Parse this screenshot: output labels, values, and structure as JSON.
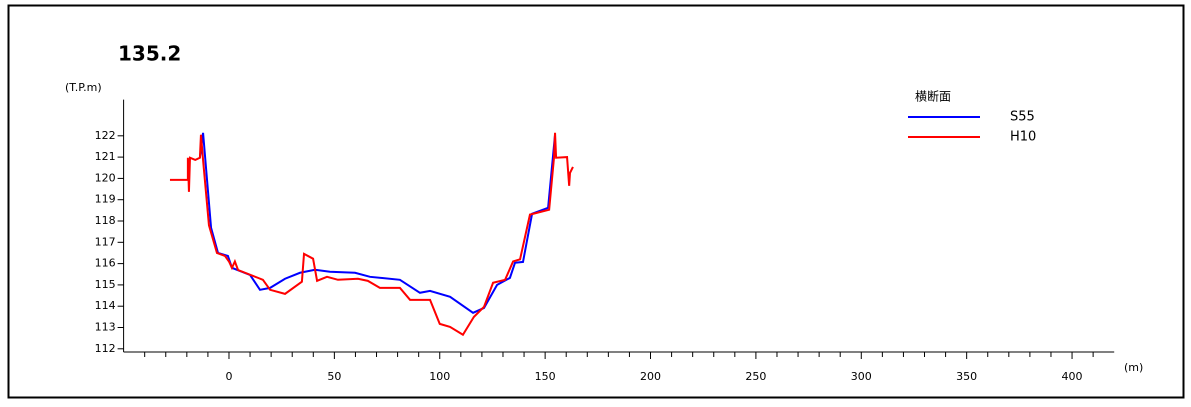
{
  "chart_data": {
    "type": "line",
    "title": "135.2",
    "y_unit": "(T.P.m)",
    "x_unit": "(m)",
    "legend_title": "横断面",
    "legend": "upper right",
    "xlim": [
      -50,
      420
    ],
    "ylim": [
      111.85,
      123.7
    ],
    "xticks": [
      0,
      50,
      100,
      150,
      200,
      250,
      300,
      350,
      400
    ],
    "xminorticks": [
      -40,
      -30,
      -20,
      -10,
      10,
      20,
      30,
      40,
      60,
      70,
      80,
      90,
      110,
      120,
      130,
      140,
      160,
      170,
      180,
      190,
      210,
      220,
      230,
      240,
      260,
      270,
      280,
      290,
      310,
      320,
      330,
      340,
      360,
      370,
      380,
      390,
      410
    ],
    "yticks": [
      112,
      113,
      114,
      115,
      116,
      117,
      118,
      119,
      120,
      121,
      122
    ],
    "series": [
      {
        "name": "S55",
        "color": "#0000ff",
        "x": [
          -13.8,
          -12.3,
          -8.5,
          -5.2,
          -0.5,
          1.4,
          10,
          14.7,
          19.5,
          26.6,
          33.7,
          40.8,
          47.9,
          59.8,
          66.9,
          81.1,
          90.6,
          95.4,
          104.9,
          115.8,
          121,
          127.2,
          133.3,
          135.7,
          139.5,
          143.8,
          151.4,
          154.7
        ],
        "values": [
          120.97,
          122.14,
          117.68,
          116.5,
          116.36,
          115.8,
          115.47,
          114.77,
          114.86,
          115.29,
          115.57,
          115.71,
          115.62,
          115.57,
          115.38,
          115.24,
          114.63,
          114.72,
          114.44,
          113.69,
          113.92,
          115.0,
          115.33,
          116.04,
          116.08,
          118.34,
          118.62,
          122.05
        ]
      },
      {
        "name": "H10",
        "color": "#ff0000",
        "x": [
          -28,
          -19.5,
          -19.5,
          -19,
          -18.5,
          -16,
          -13.8,
          -13.3,
          -12.3,
          -9.5,
          -5.7,
          -1.9,
          0,
          1.4,
          2.8,
          4.3,
          13.8,
          16.1,
          19.5,
          26.6,
          34.6,
          35.6,
          39.9,
          41.8,
          46.5,
          51.7,
          61.2,
          65.9,
          71.6,
          81.1,
          85.9,
          95.4,
          100,
          104.9,
          111,
          116.2,
          121,
          125.3,
          131,
          134.8,
          138.1,
          142.8,
          151.9,
          154.2,
          154.7,
          155.2,
          160.4,
          161.4,
          161.8,
          163.2
        ],
        "values": [
          119.93,
          119.93,
          120.97,
          119.37,
          120.97,
          120.87,
          120.97,
          122.05,
          120.87,
          117.8,
          116.5,
          116.36,
          116.1,
          115.8,
          116.1,
          115.7,
          115.33,
          115.24,
          114.77,
          114.58,
          115.15,
          116.46,
          116.23,
          115.19,
          115.38,
          115.24,
          115.29,
          115.19,
          114.86,
          114.86,
          114.3,
          114.3,
          113.17,
          113.03,
          112.66,
          113.5,
          113.97,
          115.1,
          115.24,
          116.1,
          116.2,
          118.3,
          118.53,
          120.97,
          122.14,
          120.97,
          121.0,
          119.65,
          120.26,
          120.54
        ]
      }
    ]
  }
}
